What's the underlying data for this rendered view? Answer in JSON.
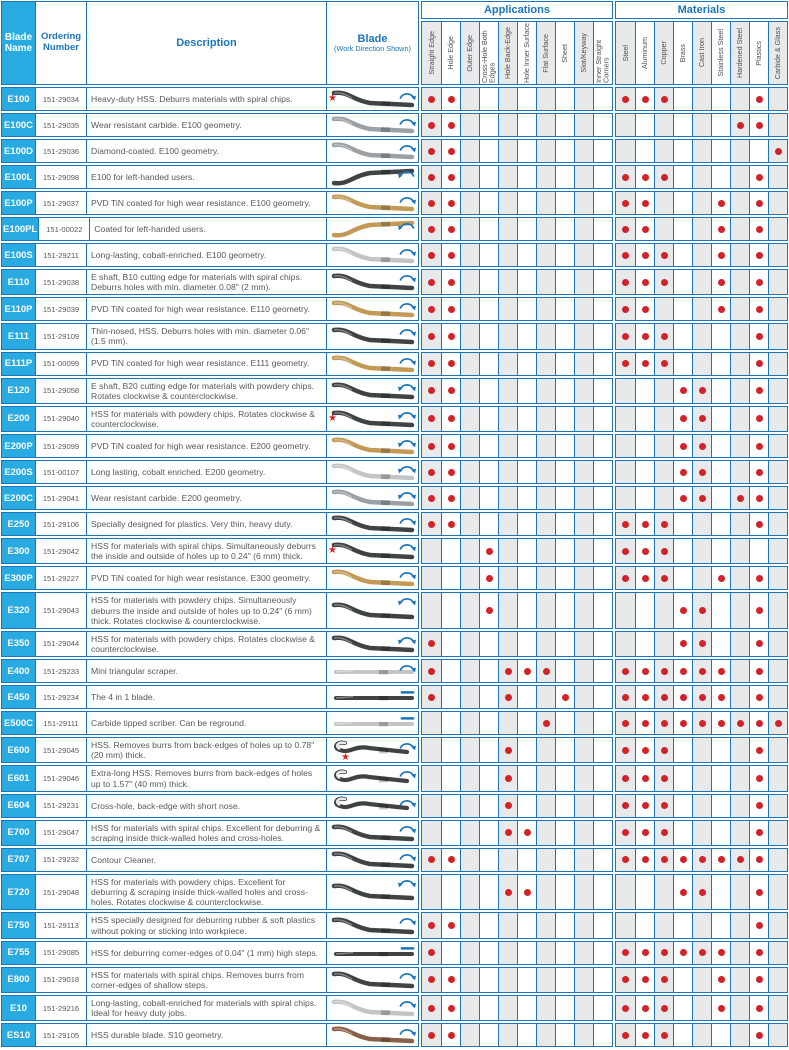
{
  "header": {
    "blade_name": "Blade Name",
    "ordering_number": "Ordering Number",
    "description": "Description",
    "blade": "Blade",
    "work_direction": "(Work Direction Shown)"
  },
  "columns": {
    "applications": {
      "title": "Applications",
      "items": [
        "Straight Edge",
        "Hole Edge",
        "Outer Edge",
        "Cross-Hole Both Edges",
        "Hole Back-Edge",
        "Hole Inner Surface",
        "Flat Surface",
        "Sheet",
        "Slot/Keyway",
        "Inner Straight Corners"
      ]
    },
    "materials": {
      "title": "Materials",
      "items": [
        "Steel",
        "Aluminum",
        "Copper",
        "Brass",
        "Cast Iron",
        "Stainless Steel",
        "Hardened Steel",
        "Plastics",
        "Carbide & Glass"
      ]
    }
  },
  "icons": {
    "cw": "clockwise-rotation-arrow-icon",
    "ccw": "counterclockwise-rotation-arrow-icon",
    "both": "bidirectional-rotation-arrow-icon",
    "dash": "linear-work-direction-dash-icon",
    "star": "recommended-star-icon"
  },
  "colors": {
    "header_blue": "#1c75bc",
    "name_cell_bg": "#29abe2",
    "dot_red": "#d2232a",
    "star_red": "#d2232a",
    "alt_column_gray": "#e8e9ea",
    "text_gray": "#58595b",
    "blade_dark": "#3f4345",
    "blade_gold": "#c29a56",
    "blade_carbide_gray": "#9aa0a3",
    "blade_silver": "#c2c5c7",
    "blade_brown": "#8a6048"
  },
  "rows": [
    {
      "name": "E100",
      "order": "151-29034",
      "desc": "Heavy-duty HSS. Deburrs materials with spiral chips.",
      "star": true,
      "shape": "s",
      "color": "dark",
      "symbol": "cw",
      "apps": [
        1,
        2
      ],
      "mats": [
        1,
        2,
        3,
        8
      ]
    },
    {
      "name": "E100C",
      "order": "151-29035",
      "desc": "Wear resistant carbide. E100 geometry.",
      "star": false,
      "shape": "s",
      "color": "carbide",
      "symbol": "cw",
      "apps": [
        1,
        2
      ],
      "mats": [
        7,
        8
      ]
    },
    {
      "name": "E100D",
      "order": "151-29036",
      "desc": "Diamond-coated. E100 geometry.",
      "star": false,
      "shape": "s",
      "color": "carbide",
      "symbol": "cw",
      "apps": [
        1,
        2
      ],
      "mats": [
        9
      ]
    },
    {
      "name": "E100L",
      "order": "151-29098",
      "desc": "E100 for left-handed users.",
      "star": false,
      "shape": "sl",
      "color": "dark",
      "symbol": "ccw",
      "apps": [
        1,
        2
      ],
      "mats": [
        1,
        2,
        3,
        8
      ]
    },
    {
      "name": "E100P",
      "order": "151-29037",
      "desc": "PVD TiN coated for high wear resistance. E100 geometry.",
      "star": false,
      "shape": "s",
      "color": "gold",
      "symbol": "cw",
      "apps": [
        1,
        2
      ],
      "mats": [
        1,
        2,
        6,
        8
      ]
    },
    {
      "name": "E100PL",
      "order": "151-00022",
      "desc": "Coated for left-handed users.",
      "star": false,
      "shape": "sl",
      "color": "gold",
      "symbol": "ccw",
      "apps": [
        1,
        2
      ],
      "mats": [
        1,
        2,
        6,
        8
      ]
    },
    {
      "name": "E100S",
      "order": "151-29211",
      "desc": "Long-lasting, cobalt-enriched. E100 geometry.",
      "star": false,
      "shape": "s",
      "color": "silver",
      "symbol": "cw",
      "apps": [
        1,
        2
      ],
      "mats": [
        1,
        2,
        3,
        6,
        8
      ]
    },
    {
      "name": "E110",
      "order": "151-29038",
      "desc": "E shaft, B10 cutting edge for materials with spiral chips. Deburrs holes with min. diameter 0.08\" (2 mm).",
      "star": false,
      "shape": "s",
      "color": "dark",
      "symbol": "cw",
      "apps": [
        1,
        2
      ],
      "mats": [
        1,
        2,
        3,
        6,
        8
      ]
    },
    {
      "name": "E110P",
      "order": "151-29039",
      "desc": "PVD TiN coated for high wear resistance. E110 geometry.",
      "star": false,
      "shape": "s",
      "color": "gold",
      "symbol": "cw",
      "apps": [
        1,
        2
      ],
      "mats": [
        1,
        2,
        6,
        8
      ]
    },
    {
      "name": "E111",
      "order": "151-29109",
      "desc": "Thin-nosed, HSS. Deburrs holes with min. diameter 0.06\" (1.5 mm).",
      "star": false,
      "shape": "s",
      "color": "dark",
      "symbol": "cw",
      "apps": [
        1,
        2
      ],
      "mats": [
        1,
        2,
        3,
        8
      ]
    },
    {
      "name": "E111P",
      "order": "151-00099",
      "desc": "PVD TiN coated for high wear resistance. E111 geometry.",
      "star": false,
      "shape": "s",
      "color": "gold",
      "symbol": "cw",
      "apps": [
        1,
        2
      ],
      "mats": [
        1,
        2,
        3,
        8
      ]
    },
    {
      "name": "E120",
      "order": "151-29058",
      "desc": "E shaft, B20 cutting edge for materials with powdery chips. Rotates clockwise & counterclockwise.",
      "star": false,
      "shape": "s",
      "color": "dark",
      "symbol": "both",
      "apps": [
        1,
        2
      ],
      "mats": [
        4,
        5,
        8
      ]
    },
    {
      "name": "E200",
      "order": "151-29040",
      "desc": "HSS for materials with powdery chips. Rotates clockwise & counterclockwise.",
      "star": true,
      "shape": "s",
      "color": "dark",
      "symbol": "both",
      "apps": [
        1,
        2
      ],
      "mats": [
        4,
        5,
        8
      ]
    },
    {
      "name": "E200P",
      "order": "151-29099",
      "desc": "PVD TiN coated for high wear resistance. E200 geometry.",
      "star": false,
      "shape": "s",
      "color": "gold",
      "symbol": "both",
      "apps": [
        1,
        2
      ],
      "mats": [
        4,
        5,
        8
      ]
    },
    {
      "name": "E200S",
      "order": "151-00107",
      "desc": "Long lasting, cobalt enriched. E200 geometry.",
      "star": false,
      "shape": "s",
      "color": "silver",
      "symbol": "both",
      "apps": [
        1,
        2
      ],
      "mats": [
        4,
        5,
        8
      ]
    },
    {
      "name": "E200C",
      "order": "151-29041",
      "desc": "Wear resistant carbide. E200 geometry.",
      "star": false,
      "shape": "s",
      "color": "carbide",
      "symbol": "both",
      "apps": [
        1,
        2
      ],
      "mats": [
        4,
        5,
        7,
        8
      ]
    },
    {
      "name": "E250",
      "order": "151-29106",
      "desc": "Specially designed for plastics. Very thin, heavy duty.",
      "star": false,
      "shape": "s",
      "color": "dark",
      "symbol": "cw",
      "apps": [
        1,
        2
      ],
      "mats": [
        1,
        2,
        3,
        8
      ]
    },
    {
      "name": "E300",
      "order": "151-29042",
      "desc": "HSS for materials with spiral chips. Simultaneously deburrs the inside and outside of holes up to 0.24\" (6 mm) thick.",
      "star": true,
      "shape": "s",
      "color": "dark",
      "symbol": "cw",
      "apps": [
        4
      ],
      "mats": [
        1,
        2,
        3
      ]
    },
    {
      "name": "E300P",
      "order": "151-29227",
      "desc": "PVD TiN coated for high wear resistance. E300 geometry.",
      "star": false,
      "shape": "s",
      "color": "gold",
      "symbol": "cw",
      "apps": [
        4
      ],
      "mats": [
        1,
        2,
        3,
        6,
        8
      ]
    },
    {
      "name": "E320",
      "order": "151-29043",
      "desc": "HSS for materials with powdery chips. Simultaneously deburrs the inside and outside of holes up to 0.24\" (6 mm) thick. Rotates clockwise & counterclockwise.",
      "star": false,
      "shape": "s",
      "color": "dark",
      "symbol": "both",
      "apps": [
        4
      ],
      "mats": [
        4,
        5,
        8
      ]
    },
    {
      "name": "E350",
      "order": "151-29044",
      "desc": "HSS for materials with powdery chips. Rotates clockwise & counterclockwise.",
      "star": false,
      "shape": "s",
      "color": "dark",
      "symbol": "both",
      "apps": [
        1
      ],
      "mats": [
        4,
        5,
        8
      ]
    },
    {
      "name": "E400",
      "order": "151-29233",
      "desc": "Mini triangular scraper.",
      "star": false,
      "shape": "st",
      "color": "silver",
      "symbol": "cw",
      "apps": [
        1,
        5,
        6,
        7
      ],
      "mats": [
        1,
        2,
        3,
        4,
        5,
        6,
        8
      ]
    },
    {
      "name": "E450",
      "order": "151-29234",
      "desc": "The 4 in 1 blade.",
      "star": false,
      "shape": "st",
      "color": "dark",
      "symbol": "dash",
      "apps": [
        1,
        5,
        8
      ],
      "mats": [
        1,
        2,
        3,
        4,
        5,
        6,
        8
      ]
    },
    {
      "name": "E500C",
      "order": "151-29111",
      "desc": "Carbide tipped scriber. Can be reground.",
      "star": false,
      "shape": "st",
      "color": "silver",
      "symbol": "dash",
      "apps": [
        7
      ],
      "mats": [
        1,
        2,
        3,
        4,
        5,
        6,
        7,
        8,
        9
      ]
    },
    {
      "name": "E600",
      "order": "151-29045",
      "desc": "HSS. Removes burrs from back-edges of holes up to 0.78\" (20 mm) thick.",
      "star": true,
      "shape": "hk",
      "color": "dark",
      "symbol": "cw",
      "apps": [
        5
      ],
      "mats": [
        1,
        2,
        3,
        8
      ]
    },
    {
      "name": "E601",
      "order": "151-29046",
      "desc": "Extra-long HSS. Removes burrs from back-edges of holes up to 1.57\" (40 mm) thick.",
      "star": false,
      "shape": "hk",
      "color": "dark",
      "symbol": "cw",
      "apps": [
        5
      ],
      "mats": [
        1,
        2,
        3,
        8
      ]
    },
    {
      "name": "E604",
      "order": "151-29231",
      "desc": "Cross-hole, back-edge with short nose.",
      "star": false,
      "shape": "hk",
      "color": "dark",
      "symbol": "cw",
      "apps": [
        5
      ],
      "mats": [
        1,
        2,
        3,
        8
      ]
    },
    {
      "name": "E700",
      "order": "151-29047",
      "desc": "HSS for materials with spiral chips. Excellent for deburring & scraping inside thick-walled holes and cross-holes.",
      "star": false,
      "shape": "s",
      "color": "dark",
      "symbol": "cw",
      "apps": [
        5,
        6
      ],
      "mats": [
        1,
        2,
        3,
        8
      ]
    },
    {
      "name": "E707",
      "order": "151-29232",
      "desc": "Contour Cleaner.",
      "star": false,
      "shape": "s",
      "color": "dark",
      "symbol": "cw",
      "apps": [
        1,
        2
      ],
      "mats": [
        1,
        2,
        3,
        4,
        5,
        6,
        7,
        8
      ]
    },
    {
      "name": "E720",
      "order": "151-29048",
      "desc": "HSS for materials with powdery chips. Excellent for deburring & scraping inside thick-walled holes and cross-holes. Rotates clockwise & counterclockwise.",
      "star": false,
      "shape": "s",
      "color": "dark",
      "symbol": "both",
      "apps": [
        5,
        6
      ],
      "mats": [
        4,
        5,
        8
      ]
    },
    {
      "name": "E750",
      "order": "151-29113",
      "desc": "HSS specially designed for deburring rubber & soft plastics without poking or sticking into workpiece.",
      "star": false,
      "shape": "s",
      "color": "dark",
      "symbol": "cw",
      "apps": [
        1,
        2
      ],
      "mats": [
        8
      ]
    },
    {
      "name": "E755",
      "order": "151-29085",
      "desc": "HSS for deburring corner-edges of 0.04\" (1 mm) high steps.",
      "star": false,
      "shape": "st",
      "color": "dark",
      "symbol": "dash",
      "apps": [
        1
      ],
      "mats": [
        1,
        2,
        3,
        4,
        5,
        6,
        8
      ]
    },
    {
      "name": "E800",
      "order": "151-29018",
      "desc": "HSS for materials with spiral chips. Removes burrs from corner-edges of shallow steps.",
      "star": false,
      "shape": "s",
      "color": "dark",
      "symbol": "cw",
      "apps": [
        1,
        2
      ],
      "mats": [
        1,
        2,
        3,
        6,
        8
      ]
    },
    {
      "name": "E10",
      "order": "151-29216",
      "desc": "Long-lasting, cobalt-enriched for materials with spiral chips. Ideal for heavy duty jobs.",
      "star": false,
      "shape": "s",
      "color": "silver",
      "symbol": "cw",
      "apps": [
        1,
        2
      ],
      "mats": [
        1,
        2,
        3,
        6,
        8
      ]
    },
    {
      "name": "ES10",
      "order": "151-29105",
      "desc": "HSS durable blade. S10 geometry.",
      "star": false,
      "shape": "s",
      "color": "brown",
      "symbol": "cw",
      "apps": [
        1,
        2
      ],
      "mats": [
        1,
        2,
        3,
        8
      ]
    }
  ]
}
